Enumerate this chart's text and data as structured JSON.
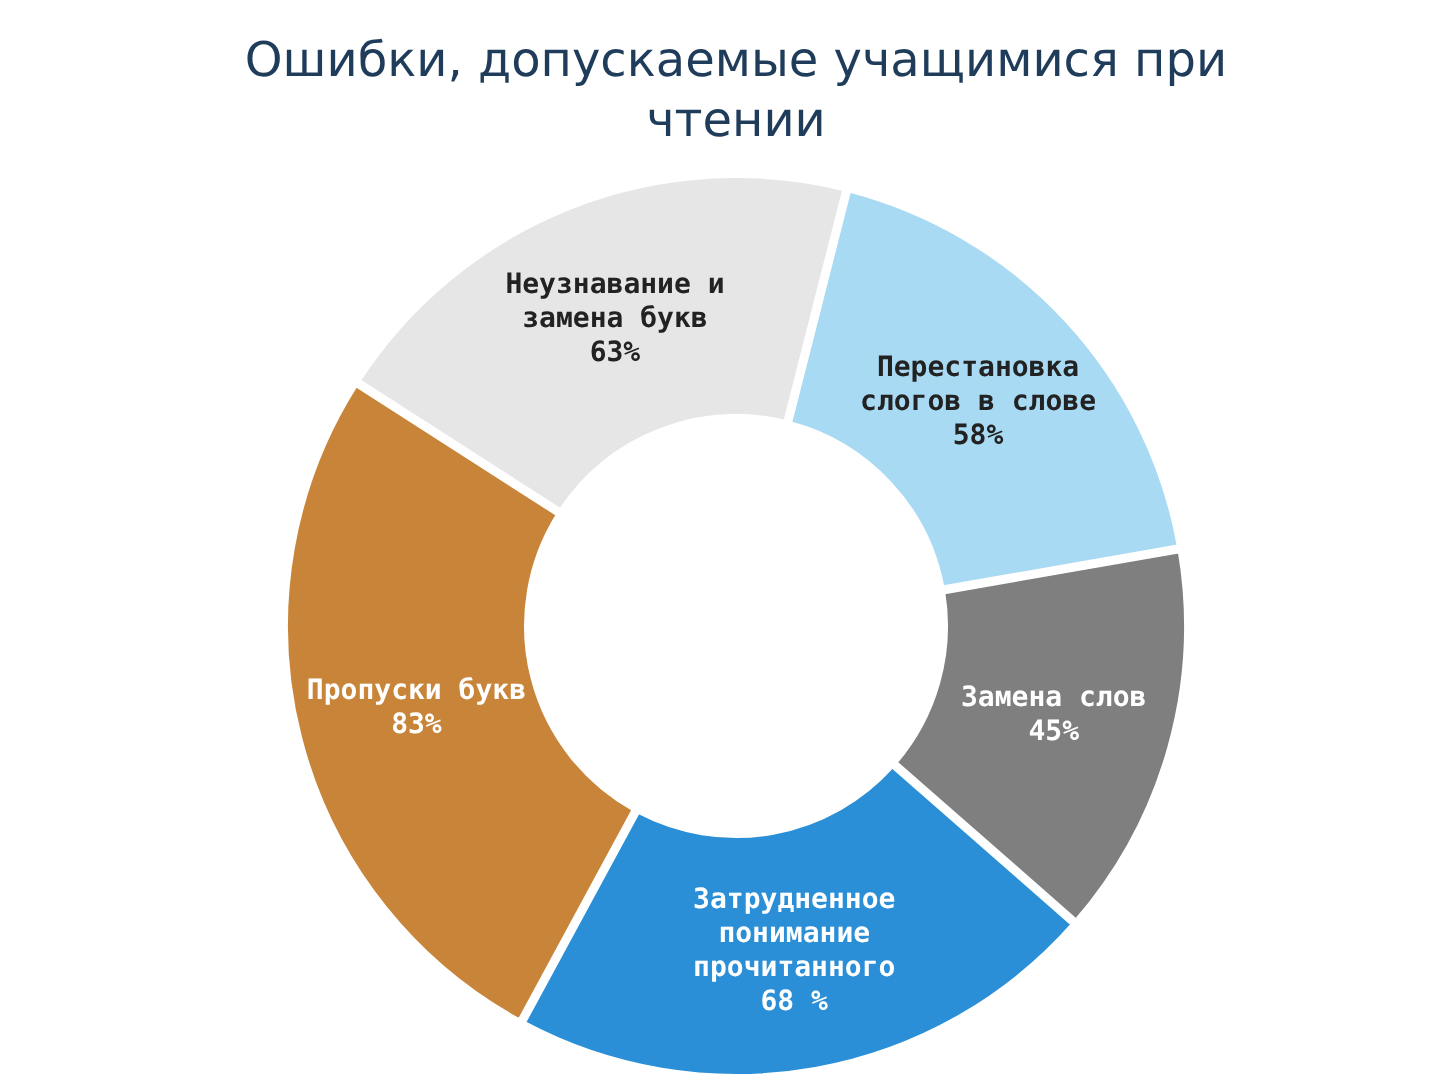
{
  "chart_data": {
    "type": "donut",
    "title": "Ошибки, допускаемые учащимися при чтении",
    "categories": [
      "Неузнавание и замена букв",
      "Перестановка слогов в слове",
      "Замена слов",
      "Затрудненное понимание прочитанного",
      "Пропуски букв"
    ],
    "values": [
      63,
      58,
      45,
      68,
      83
    ],
    "value_labels": [
      "63%",
      "58%",
      "45%",
      "68 %",
      "83%"
    ],
    "colors": [
      "#e6e6e6",
      "#a9daf3",
      "#7f7f7f",
      "#2a8fd6",
      "#c8853a"
    ]
  }
}
